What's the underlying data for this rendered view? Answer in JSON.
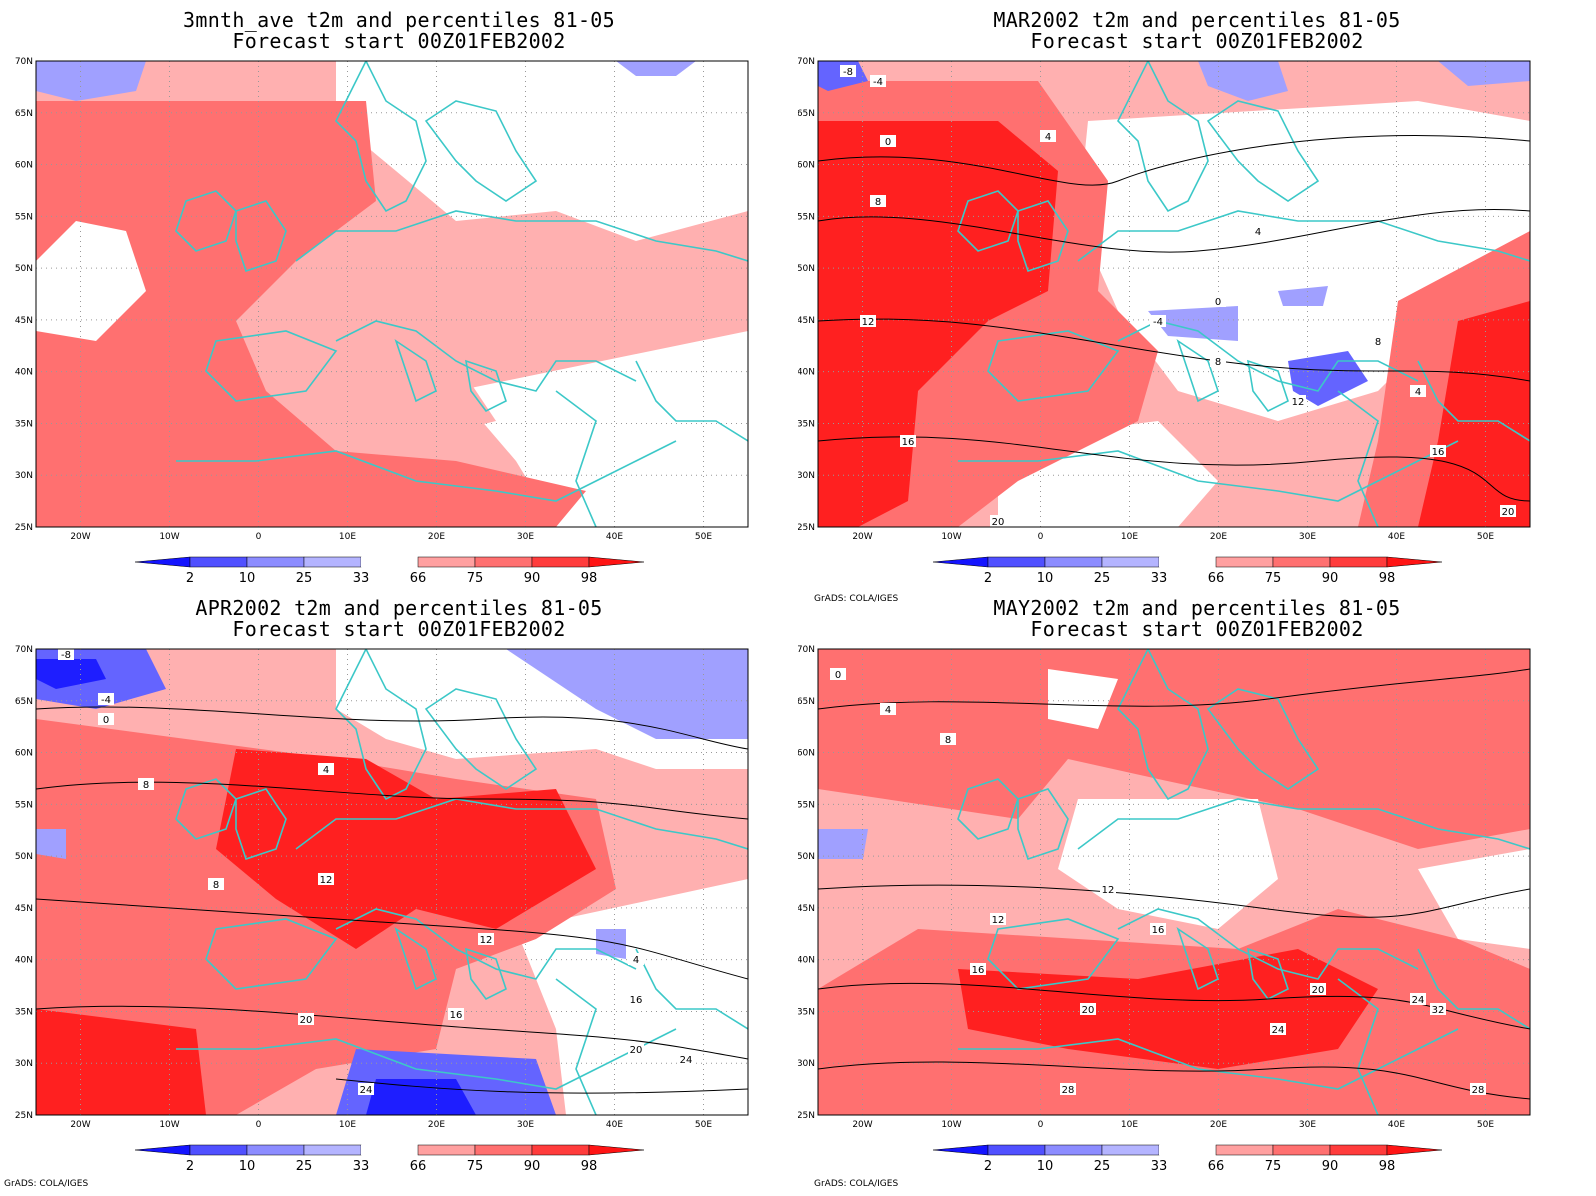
{
  "footer_text": "GrADS: COLA/IGES",
  "axes": {
    "lon_labels": [
      "20W",
      "10W",
      "0",
      "10E",
      "20E",
      "30E",
      "40E",
      "50E"
    ],
    "lat_labels": [
      "70N",
      "65N",
      "60N",
      "55N",
      "50N",
      "45N",
      "40N",
      "35N",
      "30N",
      "25N"
    ]
  },
  "colorbar": {
    "labels": [
      "2",
      "10",
      "25",
      "33",
      "66",
      "75",
      "90",
      "98"
    ],
    "colors": [
      "#1414ff",
      "#5050ff",
      "#8c8cff",
      "#b4b4ff",
      "#ffa0a0",
      "#ff7070",
      "#ff3c3c",
      "#ff1414"
    ]
  },
  "colors": {
    "coast": "#3cc8c8",
    "red_light": "#ffb0b0",
    "red_mid": "#ff7070",
    "red_dark": "#ff2020",
    "blue_light": "#a0a0ff",
    "blue_mid": "#6464ff",
    "blue_dark": "#1e1eff"
  },
  "panels": [
    {
      "id": "p1",
      "title_line1": "3mnth_ave t2m and percentiles 81-05",
      "title_line2": "Forecast start 00Z01FEB2002",
      "show_footer": false,
      "contour_labels": []
    },
    {
      "id": "p2",
      "title_line1": "MAR2002 t2m and percentiles 81-05",
      "title_line2": "Forecast start 00Z01FEB2002",
      "show_footer": true,
      "contour_labels": [
        "-8",
        "-4",
        "0",
        "4",
        "8",
        "12",
        "16",
        "20",
        "-4",
        "0",
        "4",
        "8",
        "12",
        "16",
        "20",
        "8",
        "4"
      ]
    },
    {
      "id": "p3",
      "title_line1": "APR2002 t2m and percentiles 81-05",
      "title_line2": "Forecast start 00Z01FEB2002",
      "show_footer": true,
      "contour_labels": [
        "-8",
        "-4",
        "0",
        "4",
        "8",
        "12",
        "16",
        "20",
        "24",
        "8",
        "4",
        "12",
        "16",
        "20",
        "24"
      ]
    },
    {
      "id": "p4",
      "title_line1": "MAY2002 t2m and percentiles 81-05",
      "title_line2": "Forecast start 00Z01FEB2002",
      "show_footer": true,
      "contour_labels": [
        "0",
        "4",
        "8",
        "12",
        "16",
        "20",
        "24",
        "28",
        "32",
        "12",
        "16",
        "20",
        "24",
        "28"
      ]
    }
  ]
}
